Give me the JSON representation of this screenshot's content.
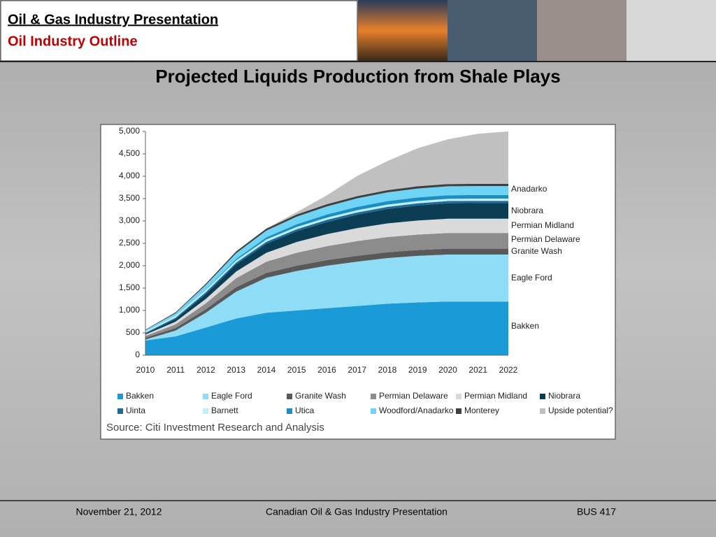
{
  "header": {
    "title": "Oil & Gas Industry Presentation",
    "subtitle": "Oil Industry Outline"
  },
  "footer": {
    "date": "November 21, 2012",
    "center": "Canadian Oil & Gas Industry Presentation",
    "course": "BUS 417"
  },
  "chart_data": {
    "type": "stacked_area",
    "title": "Projected Liquids Production from Shale Plays",
    "source": "Source: Citi Investment Research and Analysis",
    "categories": [
      "2010",
      "2011",
      "2012",
      "2013",
      "2014",
      "2015",
      "2016",
      "2017",
      "2018",
      "2019",
      "2020",
      "2021",
      "2022"
    ],
    "ylim": [
      0,
      5000
    ],
    "yticks": [
      0,
      500,
      {
        "value": 1000,
        "label": "1,000"
      },
      {
        "value": 1500,
        "label": "1,500"
      },
      {
        "value": 2000,
        "label": "2,000"
      },
      {
        "value": 2500,
        "label": "2,500"
      },
      {
        "value": 3000,
        "label": "3,000"
      },
      {
        "value": 3500,
        "label": "3,500"
      },
      {
        "value": 4000,
        "label": "4,000"
      },
      {
        "value": 4500,
        "label": "4,500"
      },
      {
        "value": 5000,
        "label": "5,000"
      }
    ],
    "series": [
      {
        "name": "Bakken",
        "color": "#1a9bd7",
        "values": [
          330,
          420,
          620,
          820,
          950,
          1000,
          1050,
          1100,
          1150,
          1180,
          1200,
          1200,
          1200
        ]
      },
      {
        "name": "Eagle Ford",
        "color": "#8fdcf7",
        "values": [
          20,
          130,
          330,
          600,
          780,
          880,
          950,
          990,
          1020,
          1040,
          1050,
          1050,
          1050
        ]
      },
      {
        "name": "Granite Wash",
        "color": "#595959",
        "values": [
          40,
          60,
          80,
          100,
          110,
          120,
          125,
          130,
          130,
          130,
          130,
          130,
          130
        ]
      },
      {
        "name": "Permian Delaware",
        "color": "#8c8c8c",
        "values": [
          40,
          80,
          130,
          200,
          250,
          290,
          310,
          330,
          340,
          345,
          350,
          350,
          350
        ]
      },
      {
        "name": "Permian Midland",
        "color": "#dadada",
        "values": [
          30,
          60,
          100,
          150,
          200,
          240,
          270,
          290,
          305,
          315,
          320,
          320,
          320
        ]
      },
      {
        "name": "Niobrara",
        "color": "#0b3d55",
        "values": [
          20,
          60,
          110,
          160,
          200,
          240,
          270,
          300,
          320,
          335,
          345,
          350,
          350
        ]
      },
      {
        "name": "Uinta",
        "color": "#1f6a94",
        "values": [
          20,
          30,
          40,
          40,
          45,
          45,
          50,
          50,
          50,
          50,
          50,
          50,
          50
        ]
      },
      {
        "name": "Barnett",
        "color": "#bfeefc",
        "values": [
          30,
          40,
          50,
          50,
          50,
          50,
          50,
          50,
          50,
          50,
          50,
          50,
          50
        ]
      },
      {
        "name": "Utica",
        "color": "#1b8fc4",
        "values": [
          0,
          0,
          10,
          30,
          50,
          60,
          70,
          75,
          78,
          80,
          80,
          80,
          80
        ]
      },
      {
        "name": "Woodford/Anadarko",
        "color": "#6fd3f5",
        "values": [
          30,
          60,
          100,
          130,
          150,
          170,
          180,
          190,
          195,
          200,
          200,
          200,
          200
        ]
      },
      {
        "name": "Monterey",
        "color": "#404040",
        "values": [
          10,
          20,
          30,
          40,
          45,
          50,
          50,
          50,
          50,
          50,
          50,
          50,
          50
        ]
      },
      {
        "name": "Upside potential?",
        "color": "#c0c0c0",
        "values": [
          0,
          0,
          0,
          0,
          0,
          50,
          200,
          450,
          650,
          850,
          1000,
          1120,
          1170
        ]
      }
    ],
    "end_labels": [
      "Anadarko",
      "Niobrara",
      "Permian Midland",
      "Permian Delaware",
      "Granite Wash",
      "Eagle Ford",
      "Bakken"
    ]
  }
}
